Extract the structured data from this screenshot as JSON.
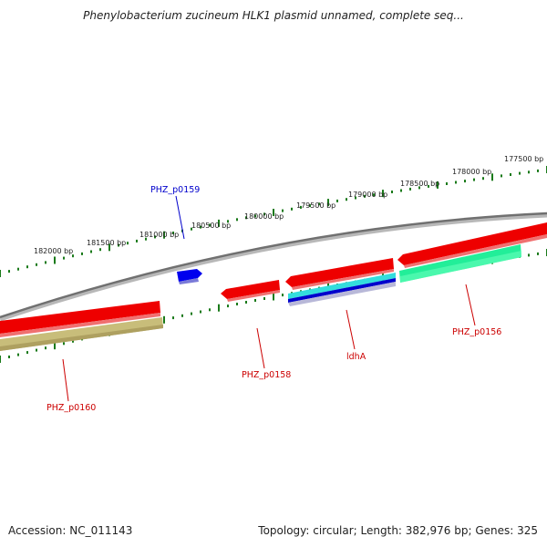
{
  "title": "Phenylobacterium zucineum HLK1 plasmid unnamed, complete seq...",
  "footer": {
    "accession": "Accession: NC_011143",
    "summary": "Topology: circular; Length: 382,976 bp; Genes: 325"
  },
  "scale_labels": [
    "177500 bp",
    "178000 bp",
    "178500 bp",
    "179000 bp",
    "179500 bp",
    "180000 bp",
    "180500 bp",
    "181000 bp",
    "181500 bp",
    "182000 bp"
  ],
  "genes": [
    {
      "name": "PHZ_p0159",
      "color": "#0000ee",
      "label_color": "#0000cc"
    },
    {
      "name": "PHZ_p0158",
      "color": "#ee0000",
      "label_color": "#cc0000"
    },
    {
      "name": "ldhA",
      "color": "#ee0000",
      "label_color": "#cc0000"
    },
    {
      "name": "PHZ_p0156",
      "color": "#ee0000",
      "label_color": "#cc0000"
    },
    {
      "name": "PHZ_p0160",
      "color": "#ee0000",
      "label_color": "#cc0000"
    }
  ],
  "colors": {
    "backbone": "#808080",
    "ticks": "#1a7a1a",
    "cds_forward": "#ee0000",
    "cds_reverse": "#ee0000",
    "feature_cyan": "#33dddd",
    "feature_blue": "#0000cc",
    "feature_teal": "#22ee99",
    "feature_olive": "#c8bd7a"
  }
}
